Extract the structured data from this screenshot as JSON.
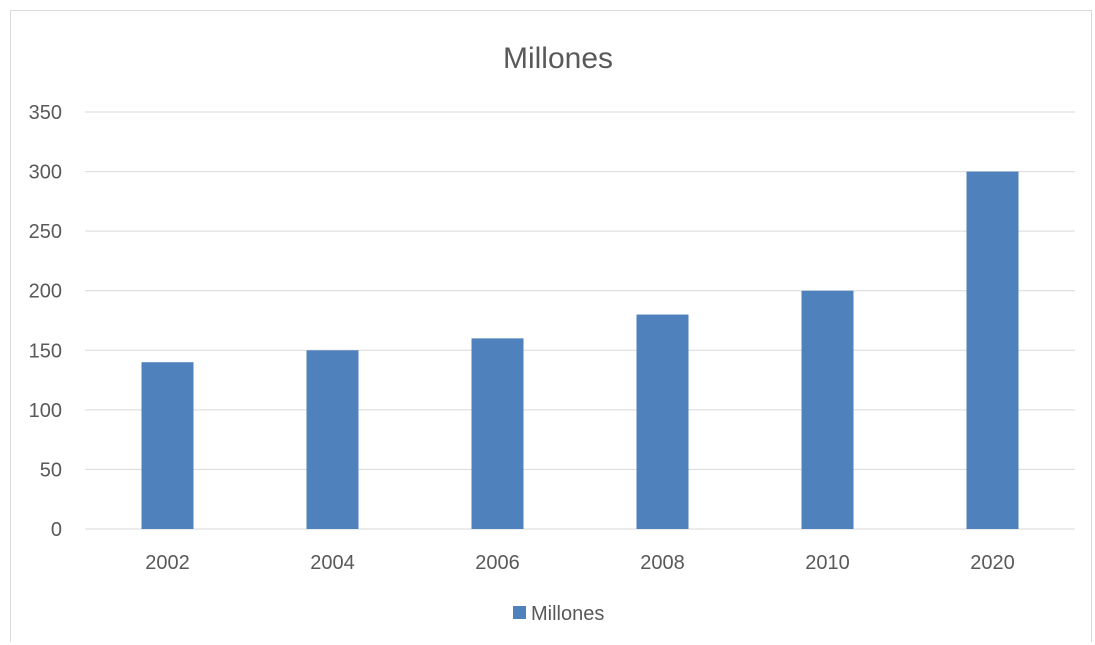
{
  "chart_data": {
    "type": "bar",
    "title": "Millones",
    "categories": [
      "2002",
      "2004",
      "2006",
      "2008",
      "2010",
      "2020"
    ],
    "series": [
      {
        "name": "Millones",
        "values": [
          140,
          150,
          160,
          180,
          200,
          300
        ]
      }
    ],
    "xlabel": "",
    "ylabel": "",
    "ylim": [
      0,
      350
    ],
    "yticks": [
      0,
      50,
      100,
      150,
      200,
      250,
      300,
      350
    ],
    "grid": true,
    "legend_position": "bottom",
    "colors": {
      "bar": "#4f81bd",
      "grid": "#d9d9d9",
      "text": "#595959"
    }
  }
}
